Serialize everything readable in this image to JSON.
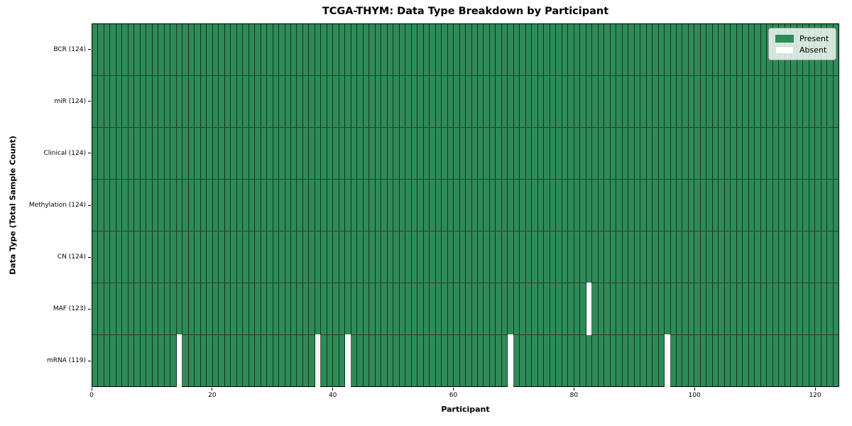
{
  "title": "TCGA-THYM: Data Type Breakdown by Participant",
  "xlabel": "Participant",
  "ylabel": "Data Type (Total Sample Count)",
  "legend": {
    "present_label": "Present",
    "absent_label": "Absent",
    "position": "upper right"
  },
  "colors": {
    "present": "#2e8b57",
    "absent": "#ffffff",
    "cell_edge": "#1a1a1a"
  },
  "chart_data": {
    "type": "heatmap",
    "title": "TCGA-THYM: Data Type Breakdown by Participant",
    "xlabel": "Participant",
    "ylabel": "Data Type (Total Sample Count)",
    "x_range": [
      0,
      124
    ],
    "x_ticks": [
      0,
      20,
      40,
      60,
      80,
      100,
      120
    ],
    "participants_total": 124,
    "grid": false,
    "legend": [
      "Present",
      "Absent"
    ],
    "legend_position": "upper right",
    "rows": [
      {
        "label": "BCR (124)",
        "data_type": "BCR",
        "present_count": 124,
        "absent_participants": []
      },
      {
        "label": "miR (124)",
        "data_type": "miR",
        "present_count": 124,
        "absent_participants": []
      },
      {
        "label": "Clinical (124)",
        "data_type": "Clinical",
        "present_count": 124,
        "absent_participants": []
      },
      {
        "label": "Methylation (124)",
        "data_type": "Methylation",
        "present_count": 124,
        "absent_participants": []
      },
      {
        "label": "CN (124)",
        "data_type": "CN",
        "present_count": 124,
        "absent_participants": []
      },
      {
        "label": "MAF (123)",
        "data_type": "MAF",
        "present_count": 123,
        "absent_participants": [
          82
        ]
      },
      {
        "label": "mRNA (119)",
        "data_type": "mRNA",
        "present_count": 119,
        "absent_participants": [
          14,
          37,
          42,
          69,
          95
        ]
      }
    ]
  }
}
